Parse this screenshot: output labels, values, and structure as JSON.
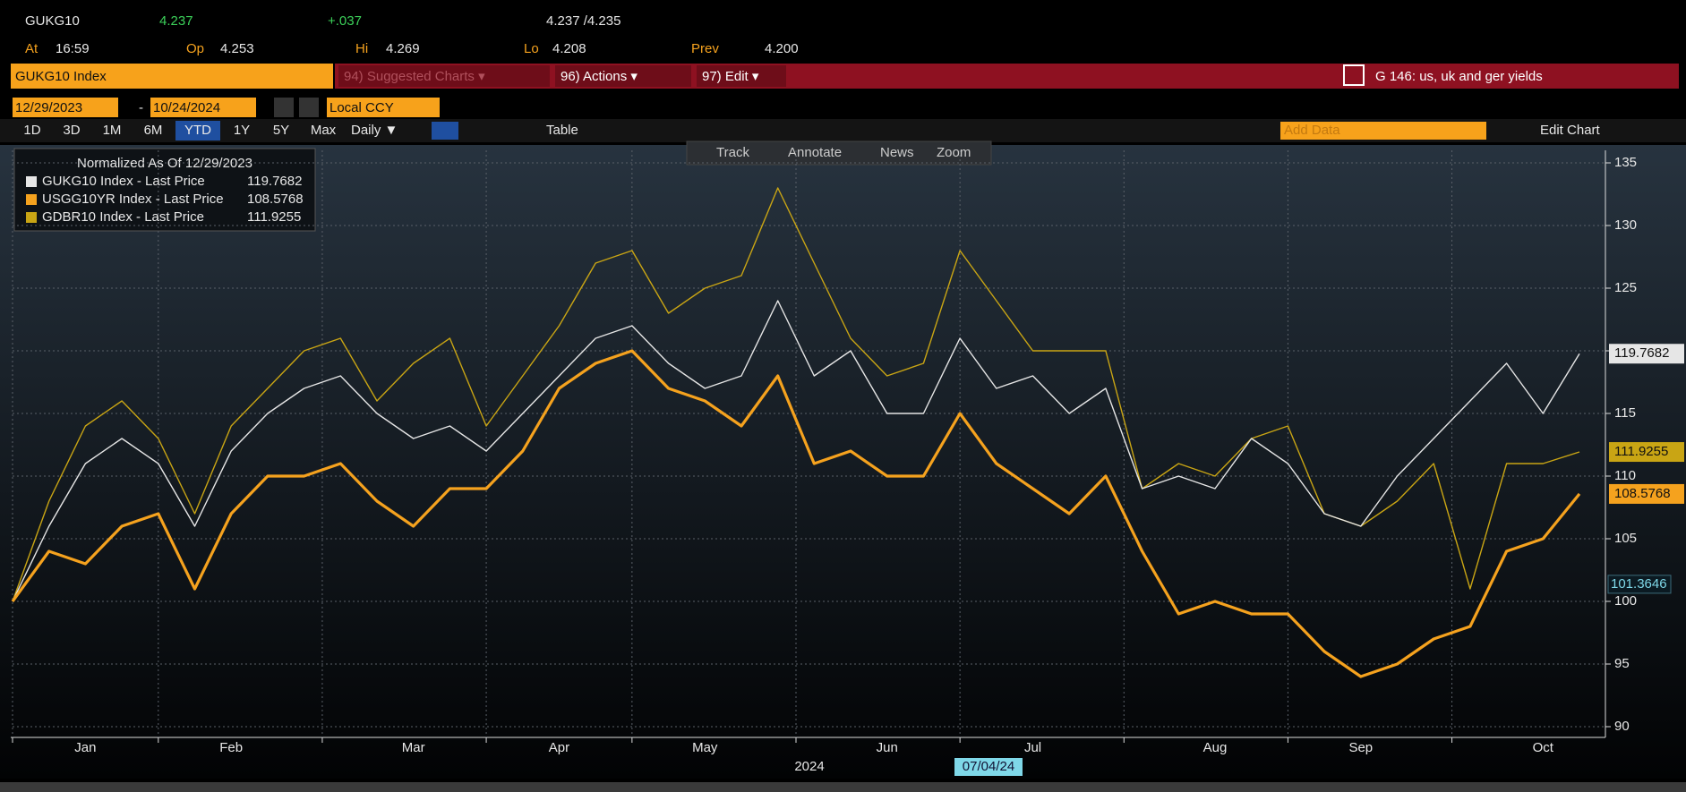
{
  "header": {
    "ticker": "GUKG10",
    "last": "4.237",
    "change": "+.037",
    "bid_ask": "4.237 /4.235",
    "at_label": "At",
    "time": "16:59",
    "open_label": "Op",
    "open": "4.253",
    "high_label": "Hi",
    "high": "4.269",
    "low_label": "Lo",
    "low": "4.208",
    "prev_label": "Prev",
    "prev": "4.200"
  },
  "toolbar": {
    "security": "GUKG10 Index",
    "menu": [
      "94) Suggested Charts ▾",
      "96) Actions ▾",
      "97) Edit ▾"
    ],
    "chart_title": "G 146: us, uk and ger yields",
    "start_date": "12/29/2023",
    "end_date": "10/24/2024",
    "currency": "Local CCY",
    "periods": [
      "1D",
      "3D",
      "1M",
      "6M",
      "YTD",
      "1Y",
      "5Y",
      "Max"
    ],
    "active_period": "YTD",
    "frequency": "Daily ▼",
    "table": "Table",
    "add_data": "Add Data",
    "edit_chart": "Edit Chart",
    "tools": [
      "Track",
      "Annotate",
      "News",
      "Zoom"
    ]
  },
  "chart_data": {
    "type": "line",
    "legend_title": "Normalized As Of 12/29/2023",
    "year_label": "2024",
    "cursor_date": "07/04/24",
    "cursor_value": 101.3646,
    "categories": [
      null,
      null,
      "Jan",
      null,
      null,
      null,
      "Feb",
      null,
      null,
      null,
      null,
      "Mar",
      null,
      null,
      null,
      "Apr",
      null,
      null,
      null,
      "May",
      null,
      null,
      null,
      null,
      "Jun",
      null,
      null,
      null,
      "Jul",
      null,
      null,
      null,
      null,
      "Aug",
      null,
      null,
      null,
      "Sep",
      null,
      null,
      null,
      null,
      "Oct",
      null
    ],
    "series": [
      {
        "name": "GUKG10 Index - Last Price",
        "color": "#e6e6e6",
        "width": 1.4,
        "values": [
          100,
          106,
          111,
          113,
          111,
          106,
          112,
          115,
          117,
          118,
          115,
          113,
          114,
          112,
          115,
          118,
          121,
          122,
          119,
          117,
          118,
          124,
          118,
          120,
          115,
          115,
          121,
          117,
          118,
          115,
          117,
          109,
          110,
          109,
          113,
          111,
          107,
          106,
          110,
          113,
          116,
          119,
          115,
          119.7682
        ]
      },
      {
        "name": "USGG10YR Index - Last Price",
        "color": "#f5a21e",
        "width": 3.2,
        "values": [
          100,
          104,
          103,
          106,
          107,
          101,
          107,
          110,
          110,
          111,
          108,
          106,
          109,
          109,
          112,
          117,
          119,
          120,
          117,
          116,
          114,
          118,
          111,
          112,
          110,
          110,
          115,
          111,
          109,
          107,
          110,
          104,
          99,
          100,
          99,
          99,
          96,
          94,
          95,
          97,
          98,
          104,
          105,
          108.5768
        ]
      },
      {
        "name": "GDBR10 Index - Last Price",
        "color": "#c9a514",
        "width": 1.4,
        "values": [
          100,
          108,
          114,
          116,
          113,
          107,
          114,
          117,
          120,
          121,
          116,
          119,
          121,
          114,
          118,
          122,
          127,
          128,
          123,
          125,
          126,
          133,
          127,
          121,
          118,
          119,
          128,
          124,
          120,
          120,
          120,
          109,
          111,
          110,
          113,
          114,
          107,
          106,
          108,
          111,
          101,
          111,
          111,
          111.9255
        ]
      }
    ],
    "ylim": [
      90,
      136
    ],
    "yticks": [
      90,
      95,
      100,
      105,
      110,
      115,
      120,
      125,
      130,
      135
    ],
    "grid": true
  }
}
